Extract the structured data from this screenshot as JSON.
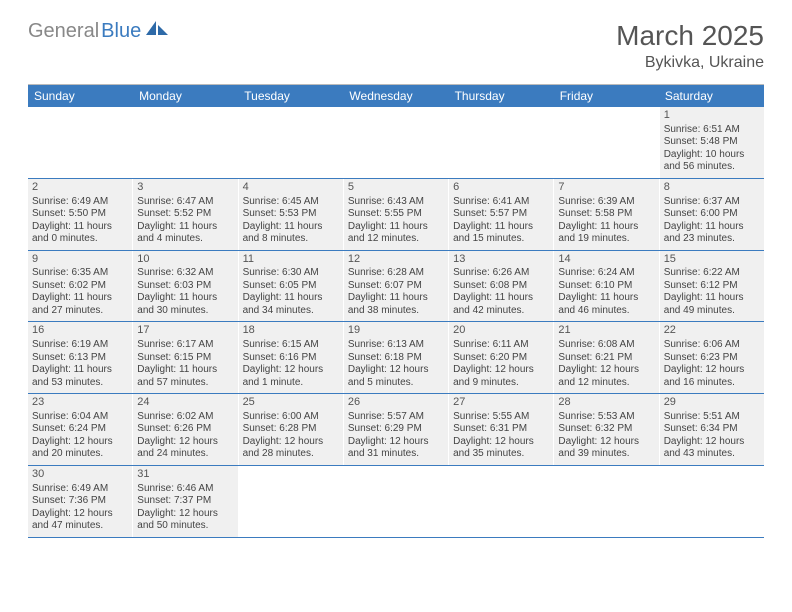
{
  "logo": {
    "gray": "General",
    "blue": "Blue"
  },
  "title": "March 2025",
  "location": "Bykivka, Ukraine",
  "colors": {
    "header_bg": "#3b7bbf",
    "header_text": "#ffffff",
    "cell_bg": "#f0f0f0",
    "border": "#3b7bbf",
    "logo_gray": "#888888",
    "logo_blue": "#3b7bbf"
  },
  "daysOfWeek": [
    "Sunday",
    "Monday",
    "Tuesday",
    "Wednesday",
    "Thursday",
    "Friday",
    "Saturday"
  ],
  "weeks": [
    [
      null,
      null,
      null,
      null,
      null,
      null,
      {
        "n": "1",
        "sr": "Sunrise: 6:51 AM",
        "ss": "Sunset: 5:48 PM",
        "dl": "Daylight: 10 hours and 56 minutes."
      }
    ],
    [
      {
        "n": "2",
        "sr": "Sunrise: 6:49 AM",
        "ss": "Sunset: 5:50 PM",
        "dl": "Daylight: 11 hours and 0 minutes."
      },
      {
        "n": "3",
        "sr": "Sunrise: 6:47 AM",
        "ss": "Sunset: 5:52 PM",
        "dl": "Daylight: 11 hours and 4 minutes."
      },
      {
        "n": "4",
        "sr": "Sunrise: 6:45 AM",
        "ss": "Sunset: 5:53 PM",
        "dl": "Daylight: 11 hours and 8 minutes."
      },
      {
        "n": "5",
        "sr": "Sunrise: 6:43 AM",
        "ss": "Sunset: 5:55 PM",
        "dl": "Daylight: 11 hours and 12 minutes."
      },
      {
        "n": "6",
        "sr": "Sunrise: 6:41 AM",
        "ss": "Sunset: 5:57 PM",
        "dl": "Daylight: 11 hours and 15 minutes."
      },
      {
        "n": "7",
        "sr": "Sunrise: 6:39 AM",
        "ss": "Sunset: 5:58 PM",
        "dl": "Daylight: 11 hours and 19 minutes."
      },
      {
        "n": "8",
        "sr": "Sunrise: 6:37 AM",
        "ss": "Sunset: 6:00 PM",
        "dl": "Daylight: 11 hours and 23 minutes."
      }
    ],
    [
      {
        "n": "9",
        "sr": "Sunrise: 6:35 AM",
        "ss": "Sunset: 6:02 PM",
        "dl": "Daylight: 11 hours and 27 minutes."
      },
      {
        "n": "10",
        "sr": "Sunrise: 6:32 AM",
        "ss": "Sunset: 6:03 PM",
        "dl": "Daylight: 11 hours and 30 minutes."
      },
      {
        "n": "11",
        "sr": "Sunrise: 6:30 AM",
        "ss": "Sunset: 6:05 PM",
        "dl": "Daylight: 11 hours and 34 minutes."
      },
      {
        "n": "12",
        "sr": "Sunrise: 6:28 AM",
        "ss": "Sunset: 6:07 PM",
        "dl": "Daylight: 11 hours and 38 minutes."
      },
      {
        "n": "13",
        "sr": "Sunrise: 6:26 AM",
        "ss": "Sunset: 6:08 PM",
        "dl": "Daylight: 11 hours and 42 minutes."
      },
      {
        "n": "14",
        "sr": "Sunrise: 6:24 AM",
        "ss": "Sunset: 6:10 PM",
        "dl": "Daylight: 11 hours and 46 minutes."
      },
      {
        "n": "15",
        "sr": "Sunrise: 6:22 AM",
        "ss": "Sunset: 6:12 PM",
        "dl": "Daylight: 11 hours and 49 minutes."
      }
    ],
    [
      {
        "n": "16",
        "sr": "Sunrise: 6:19 AM",
        "ss": "Sunset: 6:13 PM",
        "dl": "Daylight: 11 hours and 53 minutes."
      },
      {
        "n": "17",
        "sr": "Sunrise: 6:17 AM",
        "ss": "Sunset: 6:15 PM",
        "dl": "Daylight: 11 hours and 57 minutes."
      },
      {
        "n": "18",
        "sr": "Sunrise: 6:15 AM",
        "ss": "Sunset: 6:16 PM",
        "dl": "Daylight: 12 hours and 1 minute."
      },
      {
        "n": "19",
        "sr": "Sunrise: 6:13 AM",
        "ss": "Sunset: 6:18 PM",
        "dl": "Daylight: 12 hours and 5 minutes."
      },
      {
        "n": "20",
        "sr": "Sunrise: 6:11 AM",
        "ss": "Sunset: 6:20 PM",
        "dl": "Daylight: 12 hours and 9 minutes."
      },
      {
        "n": "21",
        "sr": "Sunrise: 6:08 AM",
        "ss": "Sunset: 6:21 PM",
        "dl": "Daylight: 12 hours and 12 minutes."
      },
      {
        "n": "22",
        "sr": "Sunrise: 6:06 AM",
        "ss": "Sunset: 6:23 PM",
        "dl": "Daylight: 12 hours and 16 minutes."
      }
    ],
    [
      {
        "n": "23",
        "sr": "Sunrise: 6:04 AM",
        "ss": "Sunset: 6:24 PM",
        "dl": "Daylight: 12 hours and 20 minutes."
      },
      {
        "n": "24",
        "sr": "Sunrise: 6:02 AM",
        "ss": "Sunset: 6:26 PM",
        "dl": "Daylight: 12 hours and 24 minutes."
      },
      {
        "n": "25",
        "sr": "Sunrise: 6:00 AM",
        "ss": "Sunset: 6:28 PM",
        "dl": "Daylight: 12 hours and 28 minutes."
      },
      {
        "n": "26",
        "sr": "Sunrise: 5:57 AM",
        "ss": "Sunset: 6:29 PM",
        "dl": "Daylight: 12 hours and 31 minutes."
      },
      {
        "n": "27",
        "sr": "Sunrise: 5:55 AM",
        "ss": "Sunset: 6:31 PM",
        "dl": "Daylight: 12 hours and 35 minutes."
      },
      {
        "n": "28",
        "sr": "Sunrise: 5:53 AM",
        "ss": "Sunset: 6:32 PM",
        "dl": "Daylight: 12 hours and 39 minutes."
      },
      {
        "n": "29",
        "sr": "Sunrise: 5:51 AM",
        "ss": "Sunset: 6:34 PM",
        "dl": "Daylight: 12 hours and 43 minutes."
      }
    ],
    [
      {
        "n": "30",
        "sr": "Sunrise: 6:49 AM",
        "ss": "Sunset: 7:36 PM",
        "dl": "Daylight: 12 hours and 47 minutes."
      },
      {
        "n": "31",
        "sr": "Sunrise: 6:46 AM",
        "ss": "Sunset: 7:37 PM",
        "dl": "Daylight: 12 hours and 50 minutes."
      },
      null,
      null,
      null,
      null,
      null
    ]
  ]
}
